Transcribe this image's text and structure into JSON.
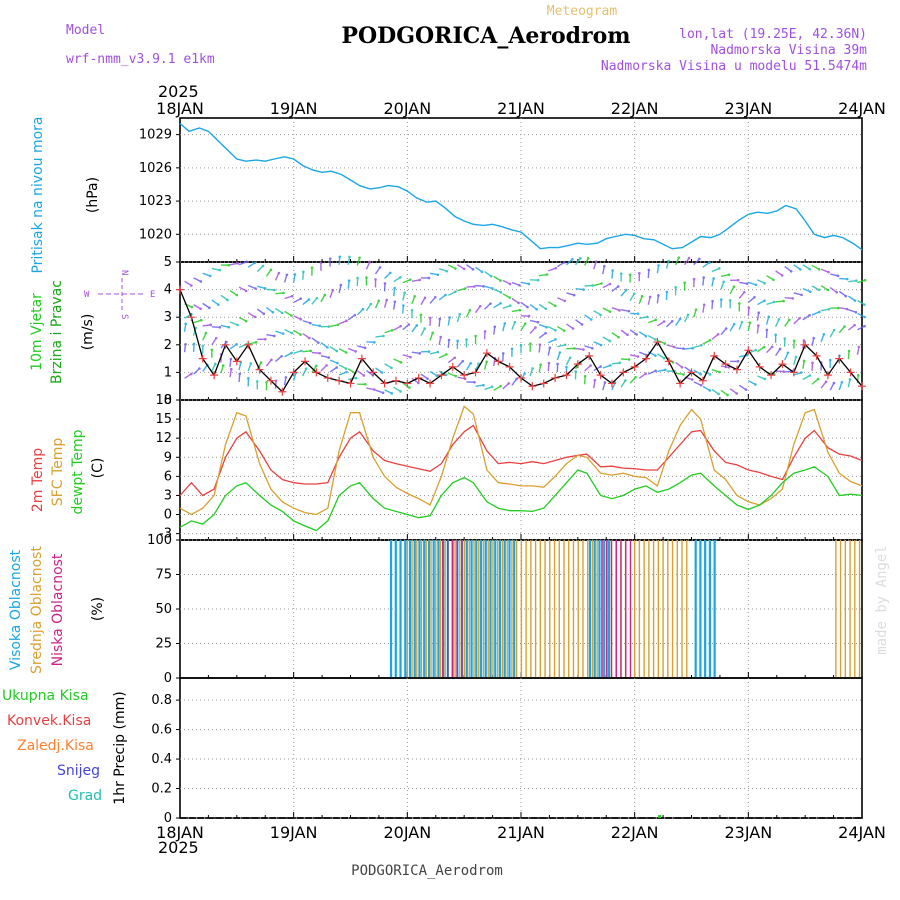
{
  "header": {
    "meteogram_label": "Meteogram",
    "model_label": "Model",
    "model_name": "wrf-nmm_v3.9.1 e1km",
    "station": "PODGORICA_Aerodrom",
    "lonlat": "lon,lat (19.25E, 42.36N)",
    "elevation": "Nadmorska Visina 39m",
    "model_elevation": "Nadmorska Visina u modelu 51.5474m"
  },
  "footer": {
    "station": "PODGORICA_Aerodrom",
    "credit": "made by Angel"
  },
  "time_axis": {
    "year_top": "2025",
    "year_bottom": "2025",
    "labels": [
      "18JAN",
      "19JAN",
      "20JAN",
      "21JAN",
      "22JAN",
      "23JAN",
      "24JAN"
    ]
  },
  "wind_compass": {
    "n": "N",
    "s": "S",
    "e": "E",
    "w": "W"
  },
  "colors": {
    "pressure": "#1aa6e6",
    "wind_label": "#19c919",
    "wind_label2": "#18a818",
    "temp2m": "#e84040",
    "sfc": "#d9a030",
    "dewpt": "#22cc22",
    "high_cloud": "#1aa6e6",
    "mid_cloud": "#d9a030",
    "low_cloud": "#cc2288",
    "total_precip": "#22cc22",
    "conv_precip": "#e84040",
    "frz_precip": "#ff8030",
    "snow": "#4444dd",
    "grad": "#20c0b0",
    "meteogram": "#e6c070",
    "model": "#a050e0"
  },
  "chart_data": [
    {
      "type": "line",
      "ylabel_lines": [
        "Pritisak na nivou mora",
        "(hPa)"
      ],
      "ylim": [
        1017.5,
        1030.5
      ],
      "yticks": [
        1020,
        1023,
        1026,
        1029
      ],
      "series": [
        {
          "x": [
            0,
            0.08,
            0.17,
            0.25,
            0.33,
            0.42,
            0.5,
            0.58,
            0.67,
            0.75,
            0.83,
            0.92,
            1,
            1.08,
            1.17,
            1.25,
            1.33,
            1.42,
            1.5,
            1.58,
            1.67,
            1.75,
            1.83,
            1.92,
            2,
            2.08,
            2.17,
            2.25,
            2.33,
            2.42,
            2.5,
            2.58,
            2.67,
            2.75,
            2.83,
            2.92,
            3,
            3.08,
            3.17,
            3.25,
            3.33,
            3.42,
            3.5,
            3.58,
            3.67,
            3.75,
            3.83,
            3.92,
            4,
            4.08,
            4.17,
            4.25,
            4.33,
            4.42,
            4.5,
            4.58,
            4.67,
            4.75,
            4.83,
            4.92,
            5,
            5.08,
            5.17,
            5.25,
            5.33,
            5.42,
            5.5,
            5.58,
            5.67,
            5.75,
            5.83,
            5.92,
            6
          ],
          "y": [
            1030.0,
            1029.3,
            1029.6,
            1029.3,
            1028.5,
            1027.6,
            1026.8,
            1026.6,
            1026.7,
            1026.6,
            1026.8,
            1027.0,
            1026.8,
            1026.2,
            1025.8,
            1025.6,
            1025.7,
            1025.4,
            1024.9,
            1024.4,
            1024.1,
            1024.2,
            1024.4,
            1024.3,
            1023.9,
            1023.3,
            1022.9,
            1023.0,
            1022.4,
            1021.6,
            1021.2,
            1020.9,
            1020.8,
            1020.9,
            1020.7,
            1020.4,
            1020.2,
            1019.5,
            1018.7,
            1018.8,
            1018.8,
            1019.0,
            1019.2,
            1019.1,
            1019.2,
            1019.6,
            1019.8,
            1020.0,
            1019.9,
            1019.6,
            1019.5,
            1019.1,
            1018.7,
            1018.8,
            1019.3,
            1019.8,
            1019.7,
            1020.0,
            1020.6,
            1021.3,
            1021.8,
            1022.0,
            1021.9,
            1022.1,
            1022.6,
            1022.3,
            1021.2,
            1020.0,
            1019.7,
            1019.9,
            1019.7,
            1019.2,
            1018.6
          ]
        }
      ]
    },
    {
      "type": "line",
      "ylabel_lines": [
        "10m Vjetar",
        "Brzina i Pravac",
        "(m/s)"
      ],
      "ylim": [
        0,
        5
      ],
      "yticks": [
        0,
        1,
        2,
        3,
        4,
        5
      ],
      "series": [
        {
          "name": "wind speed",
          "x": [
            0,
            0.1,
            0.2,
            0.3,
            0.4,
            0.5,
            0.6,
            0.7,
            0.8,
            0.9,
            1,
            1.1,
            1.2,
            1.3,
            1.4,
            1.5,
            1.6,
            1.7,
            1.8,
            1.9,
            2,
            2.1,
            2.2,
            2.3,
            2.4,
            2.5,
            2.6,
            2.7,
            2.8,
            2.9,
            3,
            3.1,
            3.2,
            3.3,
            3.4,
            3.5,
            3.6,
            3.7,
            3.8,
            3.9,
            4,
            4.1,
            4.2,
            4.3,
            4.4,
            4.5,
            4.6,
            4.7,
            4.8,
            4.9,
            5,
            5.1,
            5.2,
            5.3,
            5.4,
            5.5,
            5.6,
            5.7,
            5.8,
            5.9,
            6
          ],
          "y": [
            4.0,
            3.0,
            1.5,
            0.9,
            2.0,
            1.4,
            2.0,
            1.1,
            0.7,
            0.3,
            1.0,
            1.4,
            1.0,
            0.8,
            0.7,
            0.6,
            1.5,
            1.0,
            0.6,
            0.7,
            0.6,
            0.8,
            0.6,
            0.9,
            1.2,
            0.9,
            1.0,
            1.7,
            1.4,
            1.2,
            0.8,
            0.5,
            0.6,
            0.8,
            0.9,
            1.3,
            1.6,
            0.9,
            0.6,
            1.0,
            1.2,
            1.5,
            2.1,
            1.4,
            0.6,
            1.0,
            0.7,
            1.6,
            1.3,
            1.1,
            1.8,
            1.2,
            0.9,
            1.3,
            1.0,
            2.0,
            1.6,
            0.9,
            1.5,
            1.0,
            0.5
          ]
        }
      ]
    },
    {
      "type": "line",
      "ylabel_lines": [
        "2m Temp",
        "SFC Temp",
        "dewpt Temp",
        "(C)"
      ],
      "ylim": [
        -4,
        18
      ],
      "yticks": [
        -3,
        0,
        3,
        6,
        9,
        12,
        15,
        18
      ],
      "series": [
        {
          "name": "2m Temp",
          "x": [
            0,
            0.1,
            0.2,
            0.3,
            0.4,
            0.5,
            0.58,
            0.7,
            0.8,
            0.9,
            1,
            1.1,
            1.2,
            1.3,
            1.4,
            1.5,
            1.58,
            1.7,
            1.8,
            1.9,
            2,
            2.1,
            2.2,
            2.3,
            2.4,
            2.5,
            2.58,
            2.7,
            2.8,
            2.9,
            3,
            3.1,
            3.2,
            3.3,
            3.4,
            3.5,
            3.58,
            3.7,
            3.8,
            3.9,
            4,
            4.1,
            4.2,
            4.3,
            4.4,
            4.5,
            4.58,
            4.7,
            4.8,
            4.9,
            5,
            5.1,
            5.2,
            5.3,
            5.4,
            5.5,
            5.58,
            5.7,
            5.8,
            5.9,
            6
          ],
          "y": [
            3,
            5,
            3,
            4,
            9,
            12,
            13,
            10,
            7,
            5.5,
            5,
            4.8,
            4.8,
            5,
            9,
            12,
            13,
            10,
            8.5,
            8,
            7.6,
            7.2,
            6.8,
            8,
            11,
            13,
            14,
            10,
            8,
            8.2,
            8,
            8.3,
            8,
            8.5,
            9,
            9.3,
            9.5,
            7.5,
            7.6,
            7.3,
            7.2,
            7,
            7,
            9,
            11,
            13,
            13.2,
            10,
            8.2,
            7.8,
            7,
            6.6,
            6,
            5.5,
            9,
            12,
            13.2,
            10.5,
            9.5,
            9.2,
            8.5
          ]
        },
        {
          "name": "SFC Temp",
          "x": [
            0,
            0.1,
            0.2,
            0.3,
            0.4,
            0.5,
            0.58,
            0.7,
            0.8,
            0.9,
            1,
            1.1,
            1.2,
            1.3,
            1.4,
            1.5,
            1.58,
            1.7,
            1.8,
            1.9,
            2,
            2.1,
            2.2,
            2.3,
            2.4,
            2.5,
            2.58,
            2.7,
            2.8,
            2.9,
            3,
            3.1,
            3.2,
            3.3,
            3.4,
            3.5,
            3.58,
            3.7,
            3.8,
            3.9,
            4,
            4.1,
            4.2,
            4.3,
            4.4,
            4.5,
            4.58,
            4.7,
            4.8,
            4.9,
            5,
            5.1,
            5.2,
            5.3,
            5.4,
            5.5,
            5.58,
            5.7,
            5.8,
            5.9,
            6
          ],
          "y": [
            1,
            0,
            1,
            3,
            11,
            16,
            15.5,
            8,
            4,
            2,
            1,
            0.3,
            0,
            1,
            10,
            16,
            16,
            9,
            6,
            4.3,
            3.3,
            2.5,
            1.5,
            6,
            12,
            17,
            15.8,
            7,
            5,
            4.8,
            4.5,
            4.5,
            4.3,
            6,
            8,
            9.3,
            9,
            6.5,
            6.2,
            6.5,
            6,
            5.8,
            4.5,
            10,
            14,
            16.5,
            15,
            7,
            5.5,
            3,
            2,
            1.5,
            2.5,
            4,
            11,
            16,
            16.5,
            9.8,
            6.5,
            5.2,
            4.5
          ]
        },
        {
          "name": "dewpt Temp",
          "x": [
            0,
            0.1,
            0.2,
            0.3,
            0.4,
            0.5,
            0.58,
            0.7,
            0.8,
            0.9,
            1,
            1.1,
            1.2,
            1.3,
            1.4,
            1.5,
            1.58,
            1.7,
            1.8,
            1.9,
            2,
            2.1,
            2.2,
            2.3,
            2.4,
            2.5,
            2.58,
            2.7,
            2.8,
            2.9,
            3,
            3.1,
            3.2,
            3.3,
            3.4,
            3.5,
            3.58,
            3.7,
            3.8,
            3.9,
            4,
            4.1,
            4.2,
            4.3,
            4.4,
            4.5,
            4.58,
            4.7,
            4.8,
            4.9,
            5,
            5.1,
            5.2,
            5.3,
            5.4,
            5.5,
            5.58,
            5.7,
            5.8,
            5.9,
            6
          ],
          "y": [
            -2,
            -1,
            -1.5,
            0,
            3,
            4.5,
            5,
            3,
            1.5,
            0.5,
            -1,
            -1.8,
            -2.5,
            -1,
            3,
            4.5,
            5,
            2.5,
            1,
            0.5,
            0,
            -0.5,
            -0.2,
            3,
            5,
            5.8,
            5,
            2,
            1,
            0.6,
            0.6,
            0.5,
            1,
            3,
            5,
            7,
            6.5,
            3,
            2.5,
            3,
            4,
            4.5,
            3.5,
            4,
            5,
            6.2,
            6.5,
            4.5,
            3,
            1.5,
            0.8,
            1.5,
            3,
            5,
            6.5,
            7,
            7.5,
            6,
            3,
            3.2,
            3
          ]
        }
      ]
    },
    {
      "type": "bar",
      "ylabel_lines": [
        "Visoka Oblacnost",
        "Srednja Oblacnost",
        "Niska Oblacnost",
        "(%)"
      ],
      "ylim": [
        0,
        100
      ],
      "yticks": [
        0,
        25,
        50,
        75,
        100
      ],
      "series": [
        {
          "name": "Visoka Oblacnost",
          "intervals": [
            [
              1.87,
              2.97
            ],
            [
              3.62,
              3.82
            ],
            [
              4.55,
              4.72
            ]
          ],
          "value": 100
        },
        {
          "name": "Srednja Oblacnost",
          "intervals": [
            [
              2.0,
              2.35
            ],
            [
              2.42,
              3.92
            ],
            [
              4.0,
              4.47
            ],
            [
              5.77,
              6.0
            ]
          ],
          "value": 100
        },
        {
          "name": "Niska Oblacnost",
          "intervals": [
            [
              2.3,
              2.5
            ],
            [
              3.7,
              3.95
            ]
          ],
          "value": 100
        }
      ]
    },
    {
      "type": "bar",
      "ylabel_lines": [
        "1hr Precip (mm)"
      ],
      "legend": [
        "Ukupna Kisa",
        "Konvek.Kisa",
        "Zaledj.Kisa",
        "Snijeg",
        "Grad"
      ],
      "ylim": [
        0,
        0.95
      ],
      "yticks": [
        0,
        0.2,
        0.4,
        0.6,
        0.8
      ],
      "series": [
        {
          "name": "Ukupna Kisa",
          "x": [
            4.22
          ],
          "y": [
            0.02
          ]
        }
      ]
    }
  ]
}
